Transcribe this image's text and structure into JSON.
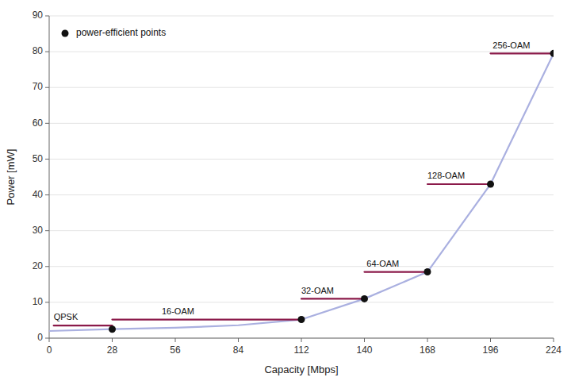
{
  "chart_data": {
    "type": "line",
    "x_label": "Capacity [Mbps]",
    "y_label": "Power [mW]",
    "xlim": [
      0,
      224
    ],
    "ylim": [
      0,
      90
    ],
    "xticks": [
      0,
      28,
      56,
      84,
      112,
      140,
      168,
      196,
      224
    ],
    "yticks": [
      0,
      10,
      20,
      30,
      40,
      50,
      60,
      70,
      80,
      90
    ],
    "grid": "y",
    "legend": "upper left",
    "series": [
      {
        "type": "line",
        "color": "#aab0e0",
        "x": [
          0,
          28,
          56,
          84,
          112,
          140,
          168,
          196,
          224
        ],
        "values": [
          2.0,
          2.5,
          2.9,
          3.6,
          5.2,
          11.0,
          18.5,
          43.0,
          79.5
        ]
      },
      {
        "type": "line",
        "color": "#8b1a4a",
        "x": [
          2,
          28
        ],
        "values": [
          3.5,
          3.5
        ]
      },
      {
        "type": "line",
        "color": "#8b1a4a",
        "x": [
          28,
          112
        ],
        "values": [
          5.2,
          5.2
        ]
      },
      {
        "type": "line",
        "color": "#8b1a4a",
        "x": [
          112,
          140
        ],
        "values": [
          11.0,
          11.0
        ]
      },
      {
        "type": "line",
        "color": "#8b1a4a",
        "x": [
          140,
          168
        ],
        "values": [
          18.5,
          18.5
        ]
      },
      {
        "type": "line",
        "color": "#8b1a4a",
        "x": [
          168,
          196
        ],
        "values": [
          43.0,
          43.0
        ]
      },
      {
        "type": "line",
        "color": "#8b1a4a",
        "x": [
          196,
          224
        ],
        "values": [
          79.5,
          79.5
        ]
      },
      {
        "name": "power-efficient points",
        "type": "scatter",
        "color": "#111111",
        "x": [
          28,
          112,
          140,
          168,
          196,
          224
        ],
        "values": [
          2.5,
          5.2,
          11.0,
          18.5,
          43.0,
          79.5
        ]
      }
    ],
    "annotations": [
      {
        "text": "QPSK",
        "x": 2,
        "y": 5.0
      },
      {
        "text": "16-OAM",
        "x": 50,
        "y": 6.7
      },
      {
        "text": "32-OAM",
        "x": 112,
        "y": 12.5
      },
      {
        "text": "64-OAM",
        "x": 141,
        "y": 20.0
      },
      {
        "text": "128-OAM",
        "x": 168,
        "y": 44.5
      },
      {
        "text": "256-OAM",
        "x": 197,
        "y": 81.0
      }
    ]
  }
}
